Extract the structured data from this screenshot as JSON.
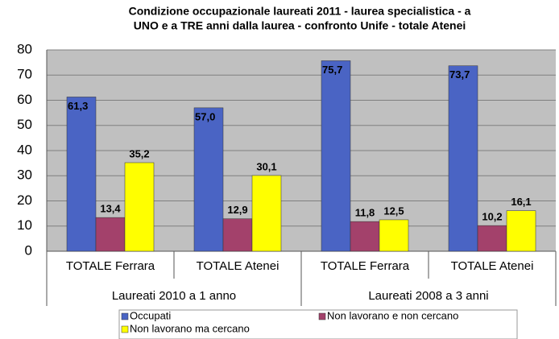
{
  "chart_data": {
    "type": "bar",
    "title": [
      "Condizione occupazionale laureati 2011 - laurea specialistica - a",
      "UNO e a TRE anni dalla laurea - confronto Unife - totale  Atenei"
    ],
    "categories": [
      "TOTALE Ferrara",
      "TOTALE Atenei",
      "TOTALE Ferrara",
      "TOTALE Atenei"
    ],
    "groups": [
      "Laureati 2010 a 1 anno",
      "Laureati 2008 a 3 anni"
    ],
    "series": [
      {
        "name": "Occupati",
        "color": "#4a64c4",
        "values": [
          61.3,
          57.0,
          75.7,
          73.7
        ],
        "value_labels": [
          "61,3",
          "57,0",
          "75,7",
          "73,7"
        ]
      },
      {
        "name": "Non lavorano e non cercano",
        "color": "#a3416b",
        "values": [
          13.4,
          12.9,
          11.8,
          10.2
        ],
        "value_labels": [
          "13,4",
          "12,9",
          "11,8",
          "10,2"
        ]
      },
      {
        "name": "Non lavorano ma cercano",
        "color": "#ffff00",
        "values": [
          35.2,
          30.1,
          12.5,
          16.1
        ],
        "value_labels": [
          "35,2",
          "30,1",
          "12,5",
          "16,1"
        ]
      }
    ],
    "ylim": [
      0,
      80
    ],
    "yticks": [
      0,
      10,
      20,
      30,
      40,
      50,
      60,
      70,
      80
    ],
    "grid": true
  }
}
